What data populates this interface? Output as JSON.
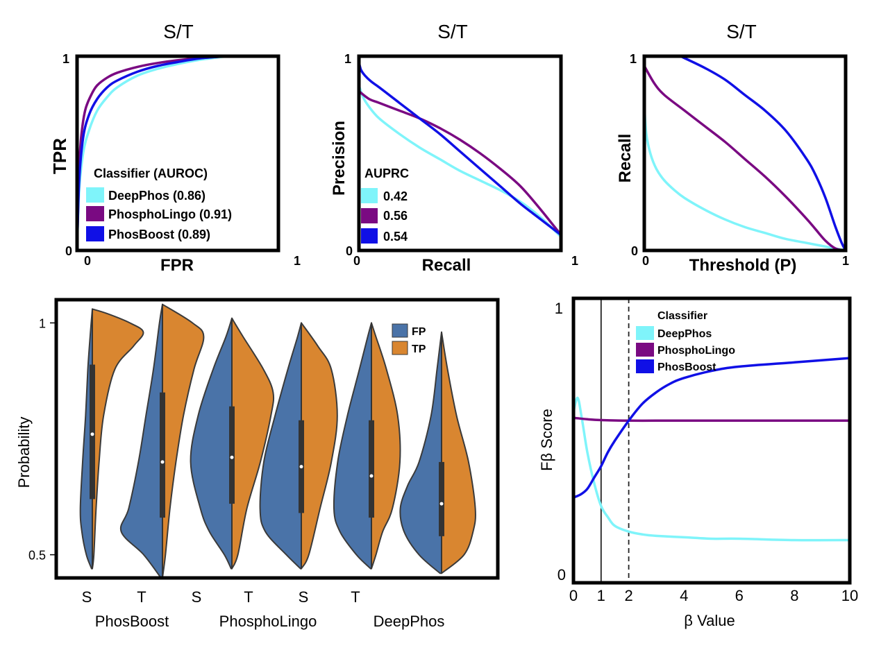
{
  "colors": {
    "deepphos": "#7ff4fa",
    "phospholingo": "#7a0a82",
    "phosboost": "#1010e6",
    "fp": "#4a73a8",
    "tp": "#d98630",
    "outline": "#3a3a3a"
  },
  "chart_data": [
    {
      "type": "line",
      "title": "S/T",
      "xlabel": "FPR",
      "ylabel": "TPR",
      "xlim": [
        0,
        1
      ],
      "ylim": [
        0,
        1
      ],
      "ticks": {
        "x0": "0",
        "x1": "1",
        "y0": "0",
        "y1": "1"
      },
      "legend_title": "Classifier (AUROC)",
      "legend_position": "bottom-right",
      "series": [
        {
          "name": "DeepPhos (0.86)",
          "color": "deepphos",
          "x": [
            0,
            0.01,
            0.03,
            0.06,
            0.1,
            0.15,
            0.2,
            0.3,
            0.4,
            0.5,
            0.6,
            0.75
          ],
          "y": [
            0,
            0.3,
            0.5,
            0.62,
            0.72,
            0.79,
            0.84,
            0.9,
            0.935,
            0.96,
            0.98,
            1.0
          ]
        },
        {
          "name": "PhosphoLingo (0.91)",
          "color": "phospholingo",
          "x": [
            0,
            0.01,
            0.02,
            0.04,
            0.07,
            0.1,
            0.15,
            0.2,
            0.3,
            0.4,
            0.55,
            0.75
          ],
          "y": [
            0,
            0.4,
            0.58,
            0.72,
            0.8,
            0.85,
            0.89,
            0.915,
            0.945,
            0.965,
            0.985,
            1.0
          ]
        },
        {
          "name": "PhosBoost (0.89)",
          "color": "phosboost",
          "x": [
            0,
            0.01,
            0.03,
            0.06,
            0.1,
            0.15,
            0.2,
            0.3,
            0.4,
            0.5,
            0.62,
            0.75
          ],
          "y": [
            0,
            0.35,
            0.58,
            0.7,
            0.78,
            0.84,
            0.875,
            0.92,
            0.95,
            0.97,
            0.99,
            1.0
          ]
        }
      ]
    },
    {
      "type": "line",
      "title": "S/T",
      "xlabel": "Recall",
      "ylabel": "Precision",
      "xlim": [
        0,
        1
      ],
      "ylim": [
        0,
        1
      ],
      "ticks": {
        "x0": "0",
        "x1": "1",
        "y0": "0",
        "y1": "1"
      },
      "legend_title": "AUPRC",
      "legend_position": "bottom-left",
      "series": [
        {
          "name": "0.42",
          "color": "deepphos",
          "x": [
            0,
            0.02,
            0.05,
            0.1,
            0.2,
            0.3,
            0.4,
            0.5,
            0.6,
            0.7,
            0.8,
            0.9,
            1.0
          ],
          "y": [
            0.85,
            0.79,
            0.74,
            0.68,
            0.6,
            0.53,
            0.47,
            0.41,
            0.36,
            0.31,
            0.25,
            0.17,
            0.07
          ]
        },
        {
          "name": "0.56",
          "color": "phospholingo",
          "x": [
            0,
            0.05,
            0.1,
            0.2,
            0.3,
            0.4,
            0.5,
            0.6,
            0.7,
            0.8,
            0.9,
            1.0
          ],
          "y": [
            0.82,
            0.78,
            0.76,
            0.72,
            0.68,
            0.63,
            0.57,
            0.5,
            0.42,
            0.33,
            0.21,
            0.08
          ]
        },
        {
          "name": "0.54",
          "color": "phosboost",
          "x": [
            0,
            0.01,
            0.03,
            0.06,
            0.1,
            0.2,
            0.3,
            0.4,
            0.5,
            0.6,
            0.7,
            0.8,
            0.9,
            1.0
          ],
          "y": [
            0.97,
            0.93,
            0.9,
            0.87,
            0.84,
            0.76,
            0.68,
            0.6,
            0.51,
            0.42,
            0.33,
            0.24,
            0.16,
            0.08
          ]
        }
      ]
    },
    {
      "type": "line",
      "title": "S/T",
      "xlabel": "Threshold (P)",
      "ylabel": "Recall",
      "xlim": [
        0,
        1
      ],
      "ylim": [
        0,
        1
      ],
      "ticks": {
        "x0": "0",
        "x1": "1",
        "y0": "0",
        "y1": "1"
      },
      "series": [
        {
          "name": "",
          "color": "deepphos",
          "x": [
            0,
            0.01,
            0.03,
            0.06,
            0.1,
            0.15,
            0.2,
            0.3,
            0.4,
            0.5,
            0.6,
            0.7,
            0.8,
            0.9,
            1.0
          ],
          "y": [
            0.75,
            0.6,
            0.5,
            0.42,
            0.36,
            0.31,
            0.27,
            0.21,
            0.16,
            0.12,
            0.09,
            0.06,
            0.04,
            0.02,
            0.0
          ]
        },
        {
          "name": "",
          "color": "phospholingo",
          "x": [
            0,
            0.05,
            0.1,
            0.2,
            0.3,
            0.4,
            0.5,
            0.6,
            0.7,
            0.8,
            0.85,
            0.9,
            0.95,
            1.0
          ],
          "y": [
            0.95,
            0.86,
            0.8,
            0.72,
            0.64,
            0.56,
            0.47,
            0.38,
            0.28,
            0.17,
            0.11,
            0.05,
            0.01,
            0.0
          ]
        },
        {
          "name": "",
          "color": "phosboost",
          "x": [
            0.18,
            0.3,
            0.4,
            0.5,
            0.6,
            0.7,
            0.8,
            0.85,
            0.9,
            0.95,
            0.98,
            1.0
          ],
          "y": [
            1.0,
            0.94,
            0.88,
            0.8,
            0.72,
            0.62,
            0.48,
            0.39,
            0.27,
            0.12,
            0.04,
            0.0
          ]
        }
      ]
    },
    {
      "type": "violin",
      "ylabel": "Probability",
      "ylim": [
        0.45,
        1.05
      ],
      "yticks": [
        {
          "value": 0.5,
          "label": "0.5"
        },
        {
          "value": 1.0,
          "label": "1"
        }
      ],
      "xtick_labels": [
        "S",
        "T",
        "S",
        "T",
        "S",
        "T"
      ],
      "group_labels": [
        "PhosBoost",
        "PhosphoLingo",
        "DeepPhos"
      ],
      "legend": [
        {
          "name": "FP",
          "color": "fp"
        },
        {
          "name": "TP",
          "color": "tp"
        }
      ],
      "legend_position": "top-right",
      "violins": [
        {
          "ymin": 0.47,
          "ymax": 1.03,
          "median": 0.76,
          "q1": 0.62,
          "q3": 0.91,
          "fp": [
            [
              0.47,
              0.01
            ],
            [
              0.5,
              0.08
            ],
            [
              0.55,
              0.14
            ],
            [
              0.6,
              0.16
            ],
            [
              0.7,
              0.13
            ],
            [
              0.8,
              0.09
            ],
            [
              0.9,
              0.06
            ],
            [
              0.97,
              0.03
            ],
            [
              1.03,
              0.0
            ]
          ],
          "tp": [
            [
              0.47,
              0.0
            ],
            [
              0.5,
              0.02
            ],
            [
              0.6,
              0.05
            ],
            [
              0.7,
              0.09
            ],
            [
              0.8,
              0.15
            ],
            [
              0.9,
              0.3
            ],
            [
              0.95,
              0.55
            ],
            [
              0.98,
              0.68
            ],
            [
              1.0,
              0.5
            ],
            [
              1.02,
              0.2
            ],
            [
              1.03,
              0.0
            ]
          ]
        },
        {
          "ymin": 0.45,
          "ymax": 1.04,
          "median": 0.7,
          "q1": 0.58,
          "q3": 0.85,
          "fp": [
            [
              0.45,
              0.02
            ],
            [
              0.5,
              0.25
            ],
            [
              0.55,
              0.55
            ],
            [
              0.6,
              0.45
            ],
            [
              0.7,
              0.32
            ],
            [
              0.8,
              0.22
            ],
            [
              0.9,
              0.12
            ],
            [
              1.0,
              0.04
            ],
            [
              1.04,
              0.0
            ]
          ],
          "tp": [
            [
              0.45,
              0.0
            ],
            [
              0.5,
              0.04
            ],
            [
              0.6,
              0.1
            ],
            [
              0.7,
              0.18
            ],
            [
              0.8,
              0.28
            ],
            [
              0.9,
              0.42
            ],
            [
              0.97,
              0.55
            ],
            [
              1.0,
              0.4
            ],
            [
              1.04,
              0.0
            ]
          ]
        },
        {
          "ymin": 0.47,
          "ymax": 1.01,
          "median": 0.71,
          "q1": 0.61,
          "q3": 0.82,
          "fp": [
            [
              0.47,
              0.01
            ],
            [
              0.5,
              0.1
            ],
            [
              0.55,
              0.3
            ],
            [
              0.6,
              0.42
            ],
            [
              0.7,
              0.55
            ],
            [
              0.8,
              0.45
            ],
            [
              0.9,
              0.25
            ],
            [
              0.97,
              0.08
            ],
            [
              1.01,
              0.0
            ]
          ],
          "tp": [
            [
              0.47,
              0.0
            ],
            [
              0.5,
              0.08
            ],
            [
              0.6,
              0.2
            ],
            [
              0.7,
              0.38
            ],
            [
              0.8,
              0.52
            ],
            [
              0.85,
              0.55
            ],
            [
              0.9,
              0.42
            ],
            [
              0.97,
              0.15
            ],
            [
              1.01,
              0.0
            ]
          ]
        },
        {
          "ymin": 0.47,
          "ymax": 1.0,
          "median": 0.69,
          "q1": 0.59,
          "q3": 0.79,
          "fp": [
            [
              0.47,
              0.01
            ],
            [
              0.5,
              0.2
            ],
            [
              0.55,
              0.48
            ],
            [
              0.6,
              0.55
            ],
            [
              0.7,
              0.5
            ],
            [
              0.8,
              0.35
            ],
            [
              0.9,
              0.18
            ],
            [
              0.97,
              0.05
            ],
            [
              1.0,
              0.0
            ]
          ],
          "tp": [
            [
              0.47,
              0.0
            ],
            [
              0.5,
              0.1
            ],
            [
              0.6,
              0.25
            ],
            [
              0.7,
              0.4
            ],
            [
              0.8,
              0.48
            ],
            [
              0.9,
              0.4
            ],
            [
              0.95,
              0.22
            ],
            [
              1.0,
              0.0
            ]
          ]
        },
        {
          "ymin": 0.47,
          "ymax": 1.0,
          "median": 0.67,
          "q1": 0.58,
          "q3": 0.79,
          "fp": [
            [
              0.47,
              0.01
            ],
            [
              0.5,
              0.2
            ],
            [
              0.55,
              0.42
            ],
            [
              0.6,
              0.5
            ],
            [
              0.7,
              0.45
            ],
            [
              0.8,
              0.32
            ],
            [
              0.9,
              0.16
            ],
            [
              0.97,
              0.05
            ],
            [
              1.0,
              0.0
            ]
          ],
          "tp": [
            [
              0.47,
              0.0
            ],
            [
              0.5,
              0.06
            ],
            [
              0.55,
              0.15
            ],
            [
              0.6,
              0.28
            ],
            [
              0.7,
              0.38
            ],
            [
              0.8,
              0.35
            ],
            [
              0.9,
              0.2
            ],
            [
              0.97,
              0.06
            ],
            [
              1.0,
              0.0
            ]
          ]
        },
        {
          "ymin": 0.46,
          "ymax": 0.98,
          "median": 0.61,
          "q1": 0.54,
          "q3": 0.7,
          "fp": [
            [
              0.46,
              0.02
            ],
            [
              0.5,
              0.3
            ],
            [
              0.55,
              0.5
            ],
            [
              0.6,
              0.55
            ],
            [
              0.65,
              0.45
            ],
            [
              0.7,
              0.3
            ],
            [
              0.8,
              0.14
            ],
            [
              0.9,
              0.06
            ],
            [
              0.98,
              0.0
            ]
          ],
          "tp": [
            [
              0.46,
              0.0
            ],
            [
              0.5,
              0.3
            ],
            [
              0.55,
              0.42
            ],
            [
              0.6,
              0.45
            ],
            [
              0.7,
              0.36
            ],
            [
              0.8,
              0.2
            ],
            [
              0.9,
              0.08
            ],
            [
              0.98,
              0.0
            ]
          ]
        }
      ]
    },
    {
      "type": "line",
      "xlabel": "β Value",
      "ylabel": "Fβ Score",
      "xlim": [
        0,
        10
      ],
      "ylim": [
        0,
        1
      ],
      "xticks": [
        0,
        1,
        2,
        4,
        6,
        8,
        10
      ],
      "yticks": [
        {
          "value": 0,
          "label": "0"
        },
        {
          "value": 1,
          "label": "1"
        }
      ],
      "vlines": [
        {
          "x": 1,
          "style": "solid"
        },
        {
          "x": 2,
          "style": "dashed"
        }
      ],
      "legend_title": "Classifier",
      "legend_position": "top",
      "series": [
        {
          "name": "DeepPhos",
          "color": "deepphos",
          "x": [
            0,
            0.15,
            0.3,
            0.5,
            0.75,
            1.0,
            1.25,
            1.5,
            2.0,
            2.5,
            3,
            4,
            5,
            6,
            8,
            10
          ],
          "y": [
            0.6,
            0.65,
            0.58,
            0.46,
            0.35,
            0.27,
            0.23,
            0.2,
            0.18,
            0.17,
            0.165,
            0.16,
            0.155,
            0.155,
            0.15,
            0.15
          ]
        },
        {
          "name": "PhosphoLingo",
          "color": "phospholingo",
          "x": [
            0,
            0.5,
            1,
            2,
            3,
            4,
            6,
            8,
            10
          ],
          "y": [
            0.58,
            0.575,
            0.572,
            0.57,
            0.57,
            0.57,
            0.57,
            0.57,
            0.57
          ]
        },
        {
          "name": "PhosBoost",
          "color": "phosboost",
          "x": [
            0,
            0.25,
            0.5,
            0.75,
            1.0,
            1.25,
            1.5,
            2.0,
            2.5,
            3,
            3.5,
            4,
            5,
            6,
            8,
            10
          ],
          "y": [
            0.3,
            0.31,
            0.33,
            0.37,
            0.41,
            0.46,
            0.5,
            0.57,
            0.63,
            0.67,
            0.7,
            0.72,
            0.745,
            0.76,
            0.775,
            0.79
          ]
        }
      ]
    }
  ]
}
